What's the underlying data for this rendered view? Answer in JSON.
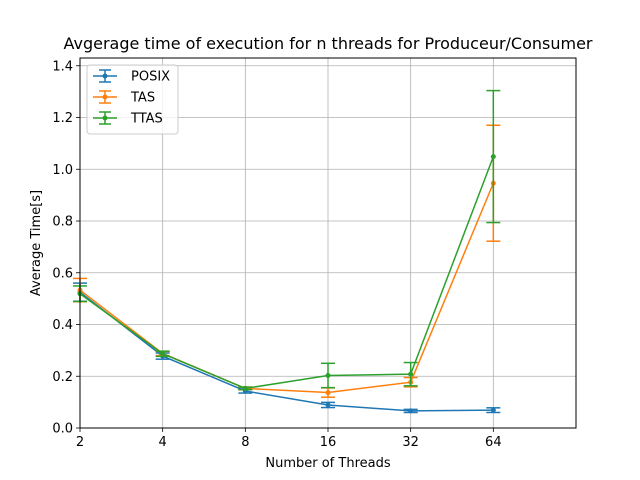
{
  "chart_data": {
    "type": "line",
    "title": "Avgerage time of execution for n threads for Produceur/Consumer",
    "xlabel": "Number of Threads",
    "ylabel": "Average Time[s]",
    "x_scale": "log2",
    "x": [
      2,
      4,
      8,
      16,
      32,
      64
    ],
    "x_tick_labels": [
      "2",
      "4",
      "8",
      "16",
      "32",
      "64"
    ],
    "xlim": [
      2,
      128
    ],
    "ylim": [
      0,
      1.43
    ],
    "y_ticks": [
      0.0,
      0.2,
      0.4,
      0.6,
      0.8,
      1.0,
      1.2,
      1.4
    ],
    "y_tick_labels": [
      "0.0",
      "0.2",
      "0.4",
      "0.6",
      "0.8",
      "1.0",
      "1.2",
      "1.4"
    ],
    "grid": true,
    "legend_position": "top-left",
    "series": [
      {
        "name": "POSIX",
        "color": "#1f77b4",
        "values": [
          0.525,
          0.278,
          0.143,
          0.089,
          0.066,
          0.069
        ],
        "error": [
          0.035,
          0.012,
          0.008,
          0.01,
          0.006,
          0.009
        ]
      },
      {
        "name": "TAS",
        "color": "#ff7f0e",
        "values": [
          0.533,
          0.288,
          0.153,
          0.137,
          0.177,
          0.946
        ],
        "error": [
          0.045,
          0.008,
          0.005,
          0.018,
          0.018,
          0.224
        ]
      },
      {
        "name": "TTAS",
        "color": "#2ca02c",
        "values": [
          0.519,
          0.287,
          0.153,
          0.203,
          0.208,
          1.049
        ],
        "error": [
          0.03,
          0.01,
          0.005,
          0.047,
          0.045,
          0.255
        ]
      }
    ]
  }
}
